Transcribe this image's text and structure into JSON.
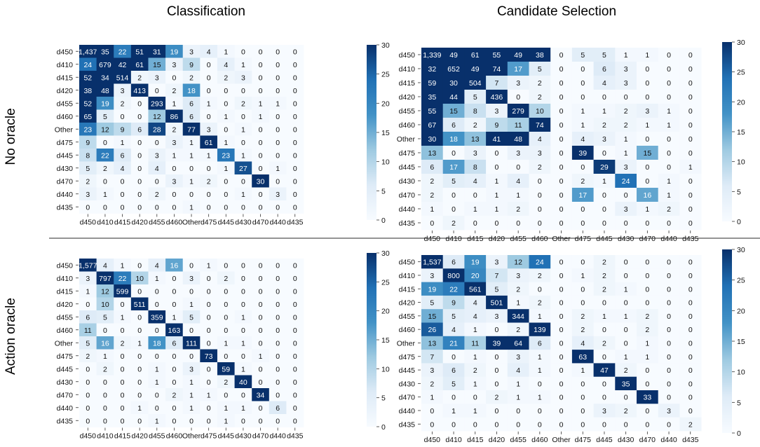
{
  "col_titles": [
    "Classification",
    "Candidate Selection"
  ],
  "row_titles": [
    "No oracle",
    "Action oracle"
  ],
  "colors": {
    "low": "#f7fbff",
    "high": "#08306b",
    "divider": "#555555"
  },
  "chart_data": [
    {
      "type": "heatmap",
      "title": "No oracle - Classification",
      "rows": [
        "d450",
        "d410",
        "d415",
        "d420",
        "d455",
        "d460",
        "Other",
        "d475",
        "d445",
        "d430",
        "d470",
        "d440",
        "d435"
      ],
      "cols": [
        "d450",
        "d410",
        "d415",
        "d420",
        "d455",
        "d460",
        "Other",
        "d475",
        "d445",
        "d430",
        "d470",
        "d440",
        "d435"
      ],
      "labels": [
        [
          "1,437",
          "35",
          "22",
          "51",
          "31",
          "19",
          "3",
          "4",
          "1",
          "0",
          "0",
          "0",
          "0"
        ],
        [
          "24",
          "679",
          "42",
          "61",
          "15",
          "3",
          "9",
          "0",
          "4",
          "1",
          "0",
          "0",
          "0"
        ],
        [
          "52",
          "34",
          "514",
          "2",
          "3",
          "0",
          "2",
          "0",
          "2",
          "3",
          "0",
          "0",
          "0"
        ],
        [
          "38",
          "48",
          "3",
          "413",
          "0",
          "2",
          "18",
          "0",
          "0",
          "0",
          "0",
          "0",
          "0"
        ],
        [
          "52",
          "19",
          "2",
          "0",
          "293",
          "1",
          "6",
          "1",
          "0",
          "2",
          "1",
          "1",
          "0"
        ],
        [
          "65",
          "5",
          "0",
          "0",
          "12",
          "86",
          "6",
          "0",
          "1",
          "0",
          "1",
          "0",
          "0"
        ],
        [
          "23",
          "12",
          "9",
          "6",
          "28",
          "2",
          "77",
          "3",
          "0",
          "1",
          "0",
          "0",
          "0"
        ],
        [
          "9",
          "0",
          "1",
          "0",
          "0",
          "3",
          "1",
          "61",
          "1",
          "0",
          "0",
          "0",
          "0"
        ],
        [
          "8",
          "22",
          "6",
          "0",
          "3",
          "1",
          "1",
          "1",
          "23",
          "1",
          "0",
          "0",
          "0"
        ],
        [
          "5",
          "2",
          "4",
          "0",
          "4",
          "0",
          "0",
          "0",
          "1",
          "27",
          "0",
          "1",
          "0"
        ],
        [
          "2",
          "0",
          "0",
          "0",
          "0",
          "3",
          "1",
          "2",
          "0",
          "0",
          "30",
          "0",
          "0"
        ],
        [
          "3",
          "1",
          "0",
          "0",
          "2",
          "0",
          "0",
          "0",
          "0",
          "1",
          "0",
          "3",
          "0"
        ],
        [
          "0",
          "0",
          "0",
          "0",
          "0",
          "0",
          "1",
          "0",
          "0",
          "0",
          "0",
          "0",
          "0"
        ]
      ],
      "colorbar": {
        "min": 0,
        "max": 30,
        "ticks": [
          "0",
          "5",
          "10",
          "15",
          "20",
          "25",
          "30"
        ]
      }
    },
    {
      "type": "heatmap",
      "title": "No oracle - Candidate Selection",
      "rows": [
        "d450",
        "d410",
        "d415",
        "d420",
        "d455",
        "d460",
        "Other",
        "d475",
        "d445",
        "d430",
        "d470",
        "d440",
        "d435"
      ],
      "cols": [
        "d450",
        "d410",
        "d415",
        "d420",
        "d455",
        "d460",
        "Other",
        "d475",
        "d445",
        "d430",
        "d470",
        "d440",
        "d435"
      ],
      "labels": [
        [
          "1,339",
          "49",
          "61",
          "55",
          "49",
          "38",
          "0",
          "5",
          "5",
          "1",
          "1",
          "0",
          "0"
        ],
        [
          "32",
          "652",
          "49",
          "74",
          "17",
          "5",
          "0",
          "0",
          "6",
          "3",
          "0",
          "0",
          "0"
        ],
        [
          "59",
          "30",
          "504",
          "7",
          "3",
          "2",
          "0",
          "0",
          "4",
          "3",
          "0",
          "0",
          "0"
        ],
        [
          "35",
          "44",
          "5",
          "436",
          "0",
          "2",
          "0",
          "0",
          "0",
          "0",
          "0",
          "0",
          "0"
        ],
        [
          "55",
          "15",
          "8",
          "3",
          "279",
          "10",
          "0",
          "1",
          "1",
          "2",
          "3",
          "1",
          "0"
        ],
        [
          "67",
          "6",
          "2",
          "9",
          "11",
          "74",
          "0",
          "1",
          "2",
          "2",
          "1",
          "1",
          "0"
        ],
        [
          "30",
          "18",
          "13",
          "41",
          "48",
          "4",
          "0",
          "4",
          "3",
          "1",
          "0",
          "0",
          "0"
        ],
        [
          "13",
          "0",
          "3",
          "0",
          "3",
          "3",
          "0",
          "39",
          "0",
          "1",
          "15",
          "0",
          "0"
        ],
        [
          "6",
          "17",
          "8",
          "0",
          "0",
          "2",
          "0",
          "0",
          "29",
          "3",
          "0",
          "0",
          "1"
        ],
        [
          "2",
          "5",
          "4",
          "1",
          "4",
          "0",
          "0",
          "2",
          "1",
          "24",
          "0",
          "1",
          "0"
        ],
        [
          "2",
          "0",
          "0",
          "1",
          "1",
          "0",
          "0",
          "17",
          "0",
          "0",
          "16",
          "1",
          "0"
        ],
        [
          "1",
          "0",
          "1",
          "1",
          "2",
          "0",
          "0",
          "0",
          "0",
          "3",
          "1",
          "2",
          "0"
        ],
        [
          "0",
          "2",
          "0",
          "0",
          "0",
          "0",
          "0",
          "0",
          "0",
          "0",
          "0",
          "0",
          "0"
        ]
      ],
      "colorbar": {
        "min": 0,
        "max": 30,
        "ticks": [
          "0",
          "5",
          "10",
          "15",
          "20",
          "25",
          "30"
        ]
      }
    },
    {
      "type": "heatmap",
      "title": "Action oracle - Classification",
      "rows": [
        "d450",
        "d410",
        "d415",
        "d420",
        "d455",
        "d460",
        "Other",
        "d475",
        "d445",
        "d430",
        "d470",
        "d440",
        "d435"
      ],
      "cols": [
        "d450",
        "d410",
        "d415",
        "d420",
        "d455",
        "d460",
        "Other",
        "d475",
        "d445",
        "d430",
        "d470",
        "d440",
        "d435"
      ],
      "labels": [
        [
          "1,577",
          "4",
          "1",
          "0",
          "4",
          "16",
          "0",
          "1",
          "0",
          "0",
          "0",
          "0",
          "0"
        ],
        [
          "3",
          "797",
          "22",
          "10",
          "1",
          "0",
          "3",
          "0",
          "2",
          "0",
          "0",
          "0",
          "0"
        ],
        [
          "1",
          "12",
          "599",
          "0",
          "0",
          "0",
          "0",
          "0",
          "0",
          "0",
          "0",
          "0",
          "0"
        ],
        [
          "0",
          "10",
          "0",
          "511",
          "0",
          "0",
          "1",
          "0",
          "0",
          "0",
          "0",
          "0",
          "0"
        ],
        [
          "6",
          "5",
          "1",
          "0",
          "359",
          "1",
          "5",
          "0",
          "0",
          "1",
          "0",
          "0",
          "0"
        ],
        [
          "11",
          "0",
          "0",
          "0",
          "0",
          "163",
          "0",
          "0",
          "0",
          "0",
          "0",
          "0",
          "0"
        ],
        [
          "5",
          "16",
          "2",
          "1",
          "18",
          "6",
          "111",
          "0",
          "1",
          "1",
          "0",
          "0",
          "0"
        ],
        [
          "2",
          "1",
          "0",
          "0",
          "0",
          "0",
          "0",
          "73",
          "0",
          "0",
          "1",
          "0",
          "0"
        ],
        [
          "0",
          "2",
          "0",
          "0",
          "1",
          "0",
          "3",
          "0",
          "59",
          "1",
          "0",
          "0",
          "0"
        ],
        [
          "0",
          "0",
          "0",
          "0",
          "1",
          "0",
          "1",
          "0",
          "2",
          "40",
          "0",
          "0",
          "0"
        ],
        [
          "0",
          "0",
          "0",
          "0",
          "0",
          "2",
          "1",
          "1",
          "0",
          "0",
          "34",
          "0",
          "0"
        ],
        [
          "0",
          "0",
          "0",
          "1",
          "0",
          "0",
          "1",
          "0",
          "1",
          "1",
          "0",
          "6",
          "0"
        ],
        [
          "0",
          "0",
          "0",
          "0",
          "1",
          "0",
          "0",
          "0",
          "1",
          "0",
          "0",
          "0",
          "0"
        ]
      ],
      "colorbar": {
        "min": 0,
        "max": 30,
        "ticks": [
          "0",
          "5",
          "10",
          "15",
          "20",
          "25",
          "30"
        ]
      }
    },
    {
      "type": "heatmap",
      "title": "Action oracle - Candidate Selection",
      "rows": [
        "d450",
        "d410",
        "d415",
        "d420",
        "d455",
        "d460",
        "Other",
        "d475",
        "d445",
        "d430",
        "d470",
        "d440",
        "d435"
      ],
      "cols": [
        "d450",
        "d410",
        "d415",
        "d420",
        "d455",
        "d460",
        "Other",
        "d475",
        "d445",
        "d430",
        "d470",
        "d440",
        "d435"
      ],
      "labels": [
        [
          "1,537",
          "6",
          "19",
          "3",
          "12",
          "24",
          "0",
          "0",
          "2",
          "0",
          "0",
          "0",
          "0"
        ],
        [
          "3",
          "800",
          "20",
          "7",
          "3",
          "2",
          "0",
          "1",
          "2",
          "0",
          "0",
          "0",
          "0"
        ],
        [
          "19",
          "22",
          "561",
          "5",
          "2",
          "0",
          "0",
          "0",
          "2",
          "1",
          "0",
          "0",
          "0"
        ],
        [
          "5",
          "9",
          "4",
          "501",
          "1",
          "2",
          "0",
          "0",
          "0",
          "0",
          "0",
          "0",
          "0"
        ],
        [
          "15",
          "5",
          "4",
          "3",
          "344",
          "1",
          "0",
          "2",
          "1",
          "1",
          "2",
          "0",
          "0"
        ],
        [
          "26",
          "4",
          "1",
          "0",
          "2",
          "139",
          "0",
          "2",
          "0",
          "0",
          "2",
          "0",
          "0"
        ],
        [
          "13",
          "21",
          "11",
          "39",
          "64",
          "6",
          "0",
          "4",
          "2",
          "0",
          "1",
          "0",
          "0"
        ],
        [
          "7",
          "0",
          "1",
          "0",
          "3",
          "1",
          "0",
          "63",
          "0",
          "1",
          "1",
          "0",
          "0"
        ],
        [
          "3",
          "6",
          "2",
          "0",
          "4",
          "1",
          "0",
          "1",
          "47",
          "2",
          "0",
          "0",
          "0"
        ],
        [
          "2",
          "5",
          "1",
          "0",
          "1",
          "0",
          "0",
          "0",
          "0",
          "35",
          "0",
          "0",
          "0"
        ],
        [
          "1",
          "0",
          "0",
          "2",
          "1",
          "1",
          "0",
          "0",
          "0",
          "0",
          "33",
          "0",
          "0"
        ],
        [
          "0",
          "1",
          "1",
          "0",
          "0",
          "0",
          "0",
          "0",
          "3",
          "2",
          "0",
          "3",
          "0"
        ],
        [
          "0",
          "0",
          "0",
          "0",
          "0",
          "0",
          "0",
          "0",
          "0",
          "0",
          "0",
          "0",
          "2"
        ]
      ],
      "colorbar": {
        "min": 0,
        "max": 30,
        "ticks": [
          "0",
          "5",
          "10",
          "15",
          "20",
          "25",
          "30"
        ]
      }
    }
  ]
}
